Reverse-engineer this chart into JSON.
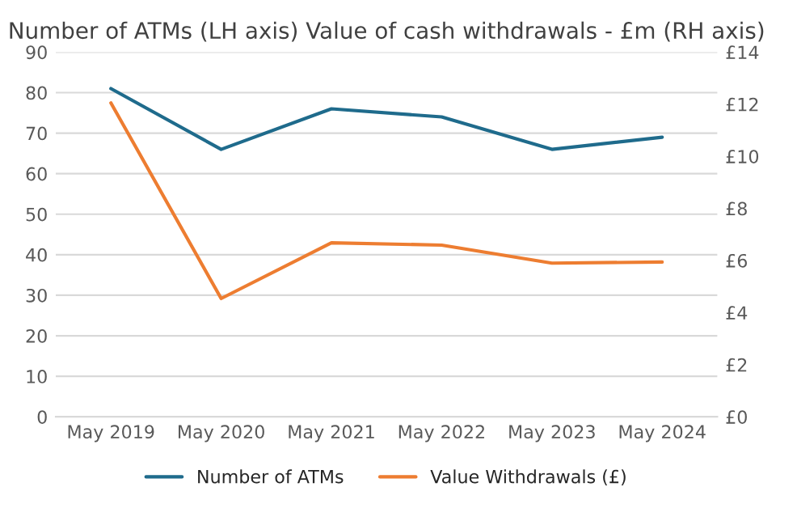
{
  "chart_data": {
    "type": "line",
    "title": "Number of ATMs (LH axis) Value of cash withdrawals - £m (RH axis)",
    "categories": [
      "May 2019",
      "May 2020",
      "May 2021",
      "May 2022",
      "May 2023",
      "May 2024"
    ],
    "series": [
      {
        "name": "Number of ATMs",
        "color": "#1f6b8c",
        "values": [
          81,
          66,
          76,
          74,
          66,
          69
        ]
      },
      {
        "name": "Value Withdrawals (£)",
        "color": "#ed7d31",
        "axis": "y2",
        "values": [
          12.05,
          4.54,
          6.68,
          6.59,
          5.9,
          5.94
        ]
      }
    ],
    "ylim": [
      0,
      90
    ],
    "yticks": [
      0,
      10,
      20,
      30,
      40,
      50,
      60,
      70,
      80,
      90
    ],
    "y2lim": [
      0,
      14
    ],
    "y2ticks": [
      {
        "value": 0,
        "label": "£0"
      },
      {
        "value": 2,
        "label": "£2"
      },
      {
        "value": 4,
        "label": "£4"
      },
      {
        "value": 6,
        "label": "£6"
      },
      {
        "value": 8,
        "label": "£8"
      },
      {
        "value": 10,
        "label": "£10"
      },
      {
        "value": 12,
        "label": "£12"
      },
      {
        "value": 14,
        "label": "£14"
      }
    ],
    "grid": "y",
    "legend": "bottom",
    "marker": "none",
    "line_style": "solid"
  }
}
